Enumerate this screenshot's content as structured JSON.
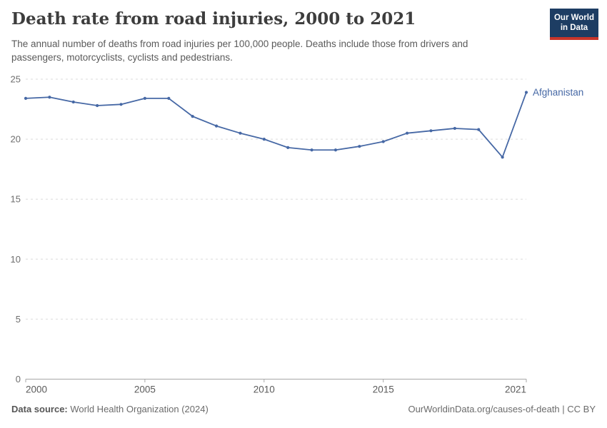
{
  "header": {
    "title": "Death rate from road injuries, 2000 to 2021",
    "subtitle": "The annual number of deaths from road injuries per 100,000 people. Deaths include those from drivers and passengers, motorcyclists, cyclists and pedestrians.",
    "logo": {
      "line1": "Our World",
      "line2": "in Data",
      "bg_color": "#1d3d63",
      "stripe_color": "#c8352a"
    }
  },
  "chart_data": {
    "type": "line",
    "title": "Death rate from road injuries, 2000 to 2021",
    "xlabel": "",
    "ylabel": "",
    "x": [
      2000,
      2001,
      2002,
      2003,
      2004,
      2005,
      2006,
      2007,
      2008,
      2009,
      2010,
      2011,
      2012,
      2013,
      2014,
      2015,
      2016,
      2017,
      2018,
      2019,
      2020,
      2021
    ],
    "series": [
      {
        "name": "Afghanistan",
        "color": "#4668a5",
        "values": [
          23.4,
          23.5,
          23.1,
          22.8,
          22.9,
          23.4,
          23.4,
          21.9,
          21.1,
          20.5,
          20.0,
          19.3,
          19.1,
          19.1,
          19.4,
          19.8,
          20.5,
          20.7,
          20.9,
          20.8,
          18.5,
          23.9
        ]
      }
    ],
    "xlim": [
      2000,
      2021
    ],
    "ylim": [
      0,
      25
    ],
    "xticks": [
      2000,
      2005,
      2010,
      2015,
      2021
    ],
    "yticks": [
      0,
      5,
      10,
      15,
      20,
      25
    ],
    "grid": "horizontal-dashed",
    "point_markers": true,
    "legend_position": "end-of-line-label"
  },
  "footer": {
    "datasource_label": "Data source:",
    "datasource_value": " World Health Organization (2024)",
    "link": "OurWorldinData.org/causes-of-death | CC BY"
  }
}
